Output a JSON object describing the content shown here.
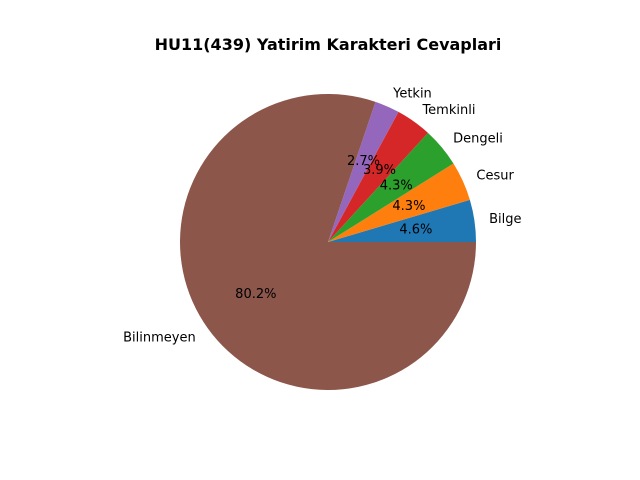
{
  "chart_data": {
    "type": "pie",
    "title": "HU11(439) Yatirim Karakteri Cevaplari",
    "categories": [
      "Bilge",
      "Cesur",
      "Dengeli",
      "Temkinli",
      "Yetkin",
      "Bilinmeyen"
    ],
    "values": [
      4.6,
      4.3,
      4.3,
      3.9,
      2.7,
      80.2
    ],
    "value_labels": [
      "4.6%",
      "4.3%",
      "4.3%",
      "3.9%",
      "2.7%",
      "80.2%"
    ],
    "colors": [
      "#1f77b4",
      "#ff7f0e",
      "#2ca02c",
      "#d62728",
      "#9467bd",
      "#8c564b"
    ],
    "start_angle_deg": 0,
    "direction": "counterclockwise",
    "legend": "none"
  }
}
